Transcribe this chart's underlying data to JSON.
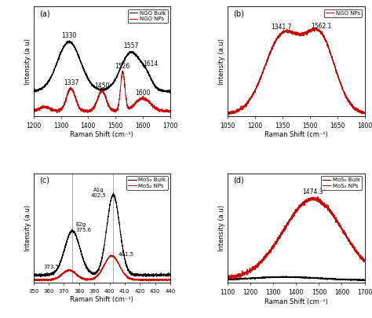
{
  "panel_a": {
    "xlabel": "Raman Shift (cm⁻¹)",
    "ylabel": "Intensity (a.u)",
    "xlim": [
      1200,
      1700
    ],
    "xticks": [
      1200,
      1300,
      1400,
      1500,
      1600,
      1700
    ],
    "legend": [
      "NGO Bulk",
      "NGO NPs"
    ],
    "legend_colors": [
      "black",
      "red"
    ],
    "bulk_peaks": [
      1330,
      1557,
      1614
    ],
    "bulk_annots": [
      "1330",
      "1557",
      "1614"
    ],
    "nps_peaks": [
      1337,
      1450,
      1526,
      1600
    ],
    "nps_annots": [
      "1337",
      "1450",
      "1526",
      "1600"
    ],
    "label": "(a)"
  },
  "panel_b": {
    "xlabel": "Raman Shift (cm⁻¹)",
    "ylabel": "Intensity (a.u)",
    "xlim": [
      1050,
      1800
    ],
    "xticks": [
      1050,
      1200,
      1350,
      1500,
      1650,
      1800
    ],
    "legend": [
      "NGO NPs"
    ],
    "legend_colors": [
      "red"
    ],
    "peaks": [
      1341.7,
      1562.1
    ],
    "peak_annots": [
      "1341.7",
      "1562.1"
    ],
    "label": "(b)"
  },
  "panel_c": {
    "xlabel": "Raman Shift (cm⁻¹)",
    "ylabel": "Intensity (a.u)",
    "xlim": [
      350,
      440
    ],
    "xticks": [
      350,
      360,
      370,
      380,
      390,
      400,
      410,
      420,
      430,
      440
    ],
    "legend": [
      "MoS₂ Bulk",
      "MoS₂ NPs"
    ],
    "legend_colors": [
      "black",
      "red"
    ],
    "vlines": [
      375.6,
      402.5
    ],
    "label": "(c)"
  },
  "panel_d": {
    "xlabel": "Raman Shift (cm⁻¹)",
    "ylabel": "Intensity (a.u)",
    "xlim": [
      1100,
      1700
    ],
    "xticks": [
      1100,
      1200,
      1300,
      1400,
      1500,
      1600,
      1700
    ],
    "legend": [
      "MoS₂ Bulk",
      "MoS₂ NPs"
    ],
    "legend_colors": [
      "black",
      "red"
    ],
    "peaks": [
      1474.3
    ],
    "peak_annots": [
      "1474.3"
    ],
    "label": "(d)"
  },
  "bg_color": "#ffffff",
  "red": "#cc0000",
  "black": "#000000",
  "gray": "#aaaaaa"
}
